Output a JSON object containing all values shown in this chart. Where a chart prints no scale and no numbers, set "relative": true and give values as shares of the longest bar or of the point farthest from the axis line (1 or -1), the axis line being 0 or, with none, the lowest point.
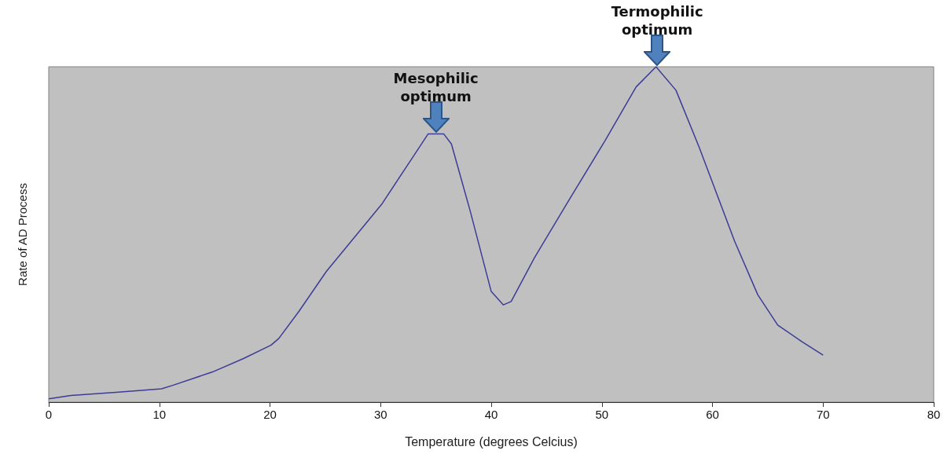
{
  "chart_data": {
    "type": "line",
    "xlabel": "Temperature (degrees Celcius)",
    "ylabel": "Rate of AD Process",
    "relative": true,
    "x": [
      0,
      2,
      6.3,
      10.2,
      11.2,
      14.8,
      17.6,
      20.1,
      20.8,
      22.6,
      25.1,
      30.1,
      32.9,
      34.3,
      35.7,
      36.4,
      38.1,
      40,
      41.1,
      41.8,
      43.9,
      46.8,
      50.3,
      53.1,
      54.9,
      56.7,
      58.8,
      62,
      64.1,
      65.9,
      68.1,
      70
    ],
    "series": [
      {
        "color": "#3c3c96",
        "values": [
          0.01,
          0.02,
          0.03,
          0.04,
          0.05,
          0.09,
          0.13,
          0.17,
          0.19,
          0.27,
          0.39,
          0.59,
          0.73,
          0.8,
          0.8,
          0.77,
          0.57,
          0.33,
          0.29,
          0.3,
          0.43,
          0.59,
          0.78,
          0.94,
          1,
          0.93,
          0.76,
          0.48,
          0.32,
          0.23,
          0.18,
          0.14
        ]
      }
    ],
    "xlim": [
      0,
      80
    ],
    "xticks": [
      0,
      10,
      20,
      30,
      40,
      50,
      60,
      70,
      80
    ],
    "marker": "none",
    "line_style": "solid",
    "annotations": [
      {
        "text": "Mesophilic optimum",
        "x": 35,
        "y": 0.8
      },
      {
        "text": "Termophilic optimum",
        "x": 55,
        "y": 1
      }
    ]
  }
}
